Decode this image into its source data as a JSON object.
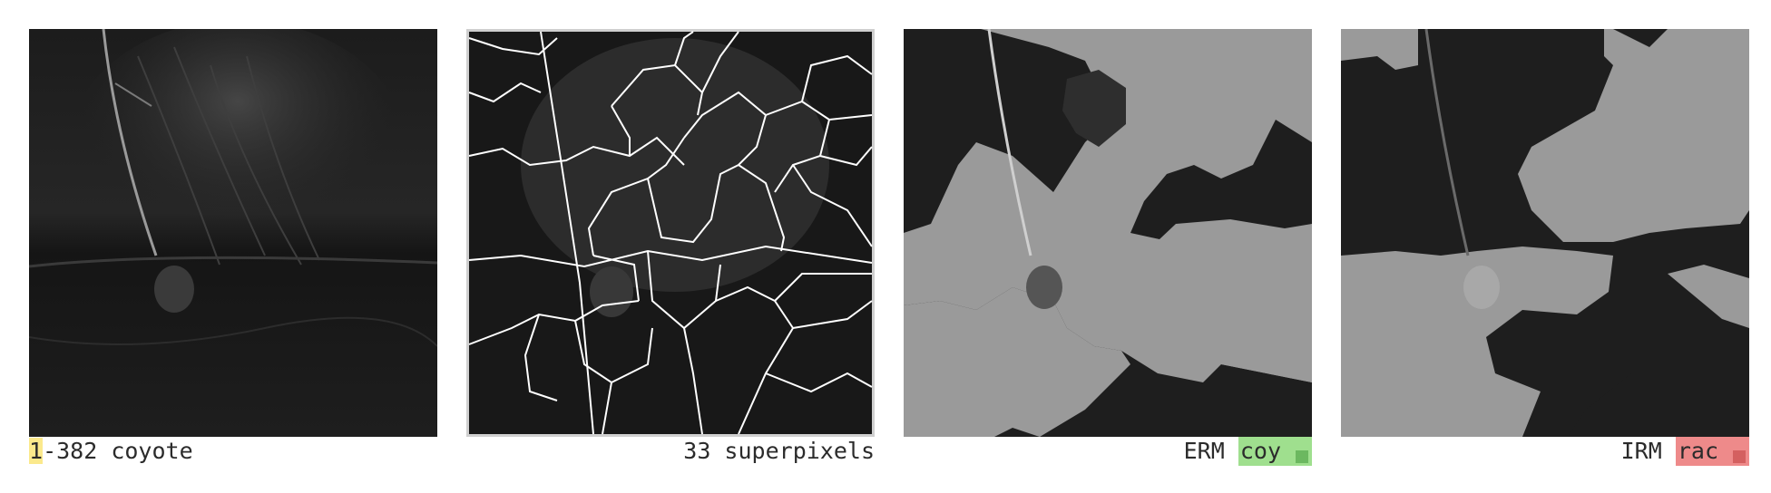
{
  "panels": [
    {
      "caption_highlight": "1",
      "caption_rest": "-382 coyote"
    },
    {
      "caption": "33 superpixels"
    },
    {
      "method": "ERM",
      "prediction": "coy",
      "status_color": "#9fdf8e"
    },
    {
      "method": "IRM",
      "prediction": "rac",
      "status_color": "#ee8a8a"
    }
  ]
}
